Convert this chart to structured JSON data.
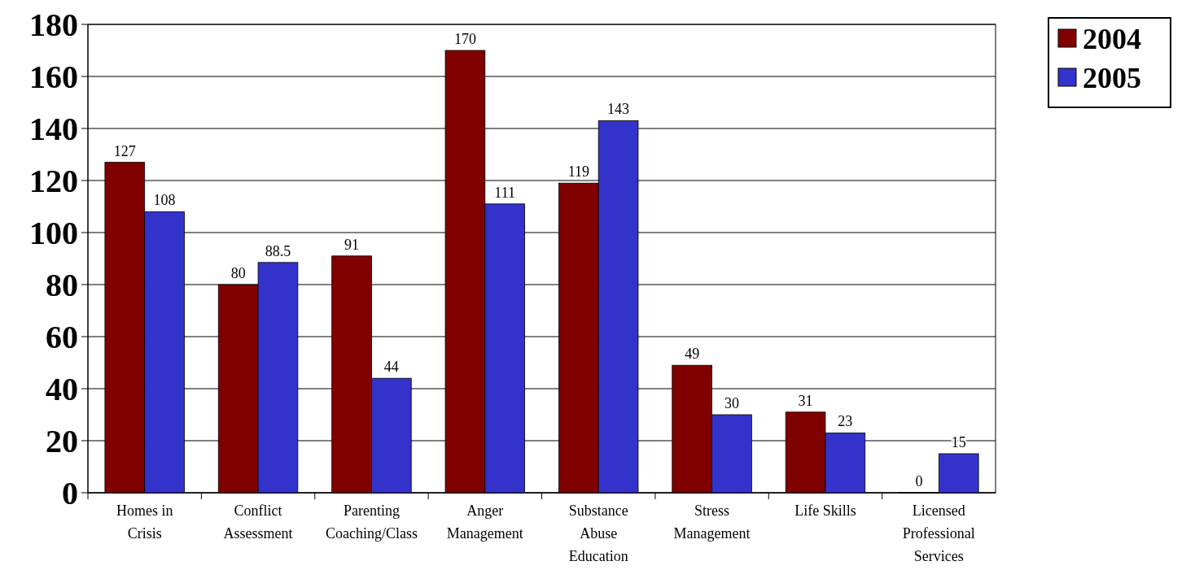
{
  "chart_data": {
    "type": "bar",
    "categories": [
      "Homes in Crisis",
      "Conflict Assessment",
      "Parenting Coaching/Class",
      "Anger Management",
      "Substance Abuse Education",
      "Stress Management",
      "Life Skills",
      "Licensed Professional Services"
    ],
    "series": [
      {
        "name": "2004",
        "color": "#800000",
        "values": [
          127,
          80,
          91,
          170,
          119,
          49,
          31,
          0
        ]
      },
      {
        "name": "2005",
        "color": "#3333cc",
        "values": [
          108,
          88.5,
          44,
          111,
          143,
          30,
          23,
          15
        ]
      }
    ],
    "ylim": [
      0,
      180
    ],
    "yticks": [
      0,
      20,
      40,
      60,
      80,
      100,
      120,
      140,
      160,
      180
    ],
    "grid": "y",
    "legend": "top right",
    "data_labels": true
  }
}
